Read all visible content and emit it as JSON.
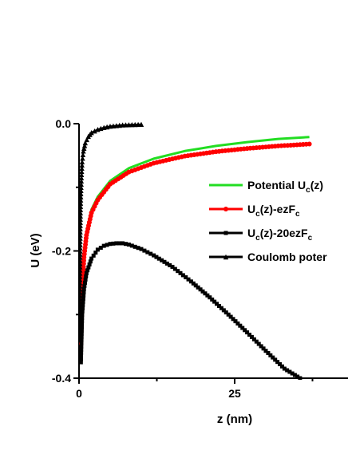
{
  "chart_data": {
    "type": "line",
    "xlabel": "z (nm)",
    "ylabel": "U (eV)",
    "xlim": [
      0,
      37
    ],
    "ylim": [
      -0.4,
      0.0
    ],
    "x_ticks": [
      {
        "value": 0,
        "label": "0"
      },
      {
        "value": 25,
        "label": "25"
      }
    ],
    "y_ticks": [
      {
        "value": 0.0,
        "label": "0.0"
      },
      {
        "value": -0.2,
        "label": "-0.2"
      },
      {
        "value": -0.4,
        "label": "-0.4"
      }
    ],
    "grid": false,
    "legend_position": "right",
    "series": [
      {
        "key": "potential",
        "legend_label": {
          "main": "Potential U",
          "sub": "c",
          "tail": "(z)",
          "sub2": ""
        },
        "color": "#22dd22",
        "marker": "none",
        "x": [
          0.3,
          0.5,
          0.8,
          1.2,
          2,
          3,
          5,
          8,
          12,
          17,
          22,
          27,
          32,
          37
        ],
        "y": [
          -0.34,
          -0.26,
          -0.205,
          -0.17,
          -0.135,
          -0.115,
          -0.09,
          -0.07,
          -0.055,
          -0.043,
          -0.035,
          -0.029,
          -0.024,
          -0.021
        ]
      },
      {
        "key": "ezf",
        "legend_label": {
          "main": "U",
          "sub": "c",
          "tail": "(z)-ezF",
          "sub2": "c"
        },
        "color": "#ff0000",
        "marker": "circle",
        "x": [
          0.3,
          0.5,
          0.8,
          1.2,
          2,
          3,
          5,
          8,
          12,
          17,
          22,
          27,
          32,
          37
        ],
        "y": [
          -0.345,
          -0.265,
          -0.21,
          -0.175,
          -0.14,
          -0.12,
          -0.095,
          -0.076,
          -0.062,
          -0.051,
          -0.044,
          -0.039,
          -0.035,
          -0.032
        ]
      },
      {
        "key": "ezf20",
        "legend_label": {
          "main": "U",
          "sub": "c",
          "tail": "(z)-20ezF",
          "sub2": "c"
        },
        "color": "#000000",
        "marker": "square",
        "x": [
          0.3,
          0.5,
          0.8,
          1.2,
          2,
          3,
          4,
          5,
          6,
          7,
          8,
          10,
          12,
          15,
          18,
          21,
          24,
          27,
          30,
          33,
          35.5
        ],
        "y": [
          -0.375,
          -0.3,
          -0.26,
          -0.235,
          -0.212,
          -0.198,
          -0.192,
          -0.189,
          -0.188,
          -0.188,
          -0.19,
          -0.197,
          -0.207,
          -0.225,
          -0.248,
          -0.273,
          -0.3,
          -0.328,
          -0.357,
          -0.385,
          -0.4
        ]
      },
      {
        "key": "coulomb",
        "legend_label": {
          "main": "Coulomb poter",
          "sub": "",
          "tail": "",
          "sub2": ""
        },
        "color": "#000000",
        "marker": "triangle",
        "x": [
          0.1,
          0.12,
          0.15,
          0.2,
          0.25,
          0.3,
          0.4,
          0.5,
          0.7,
          1.0,
          1.5,
          2,
          3,
          4,
          5,
          7,
          10
        ],
        "y": [
          -0.34,
          -0.28,
          -0.23,
          -0.17,
          -0.13,
          -0.11,
          -0.08,
          -0.06,
          -0.043,
          -0.03,
          -0.02,
          -0.014,
          -0.009,
          -0.006,
          -0.004,
          -0.002,
          -0.001
        ]
      }
    ]
  }
}
